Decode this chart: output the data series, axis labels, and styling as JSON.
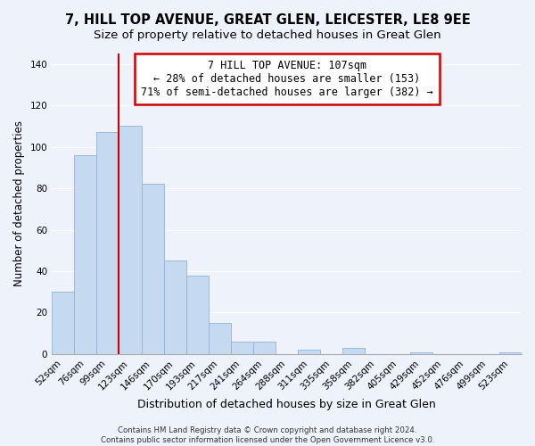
{
  "title": "7, HILL TOP AVENUE, GREAT GLEN, LEICESTER, LE8 9EE",
  "subtitle": "Size of property relative to detached houses in Great Glen",
  "xlabel": "Distribution of detached houses by size in Great Glen",
  "ylabel": "Number of detached properties",
  "bar_labels": [
    "52sqm",
    "76sqm",
    "99sqm",
    "123sqm",
    "146sqm",
    "170sqm",
    "193sqm",
    "217sqm",
    "241sqm",
    "264sqm",
    "288sqm",
    "311sqm",
    "335sqm",
    "358sqm",
    "382sqm",
    "405sqm",
    "429sqm",
    "452sqm",
    "476sqm",
    "499sqm",
    "523sqm"
  ],
  "bar_values": [
    30,
    96,
    107,
    110,
    82,
    45,
    38,
    15,
    6,
    6,
    0,
    2,
    0,
    3,
    0,
    0,
    1,
    0,
    0,
    0,
    1
  ],
  "bar_color": "#c5d9f1",
  "bar_edge_color": "#93b3d8",
  "vline_x_index": 2,
  "vline_color": "#cc0000",
  "ylim": [
    0,
    145
  ],
  "yticks": [
    0,
    20,
    40,
    60,
    80,
    100,
    120,
    140
  ],
  "annotation_title": "7 HILL TOP AVENUE: 107sqm",
  "annotation_line1": "← 28% of detached houses are smaller (153)",
  "annotation_line2": "71% of semi-detached houses are larger (382) →",
  "footer1": "Contains HM Land Registry data © Crown copyright and database right 2024.",
  "footer2": "Contains public sector information licensed under the Open Government Licence v3.0.",
  "background_color": "#eef2fb",
  "title_fontsize": 10.5,
  "annotation_fontsize": 8.5,
  "xlabel_fontsize": 9,
  "ylabel_fontsize": 8.5,
  "tick_fontsize": 7.5
}
